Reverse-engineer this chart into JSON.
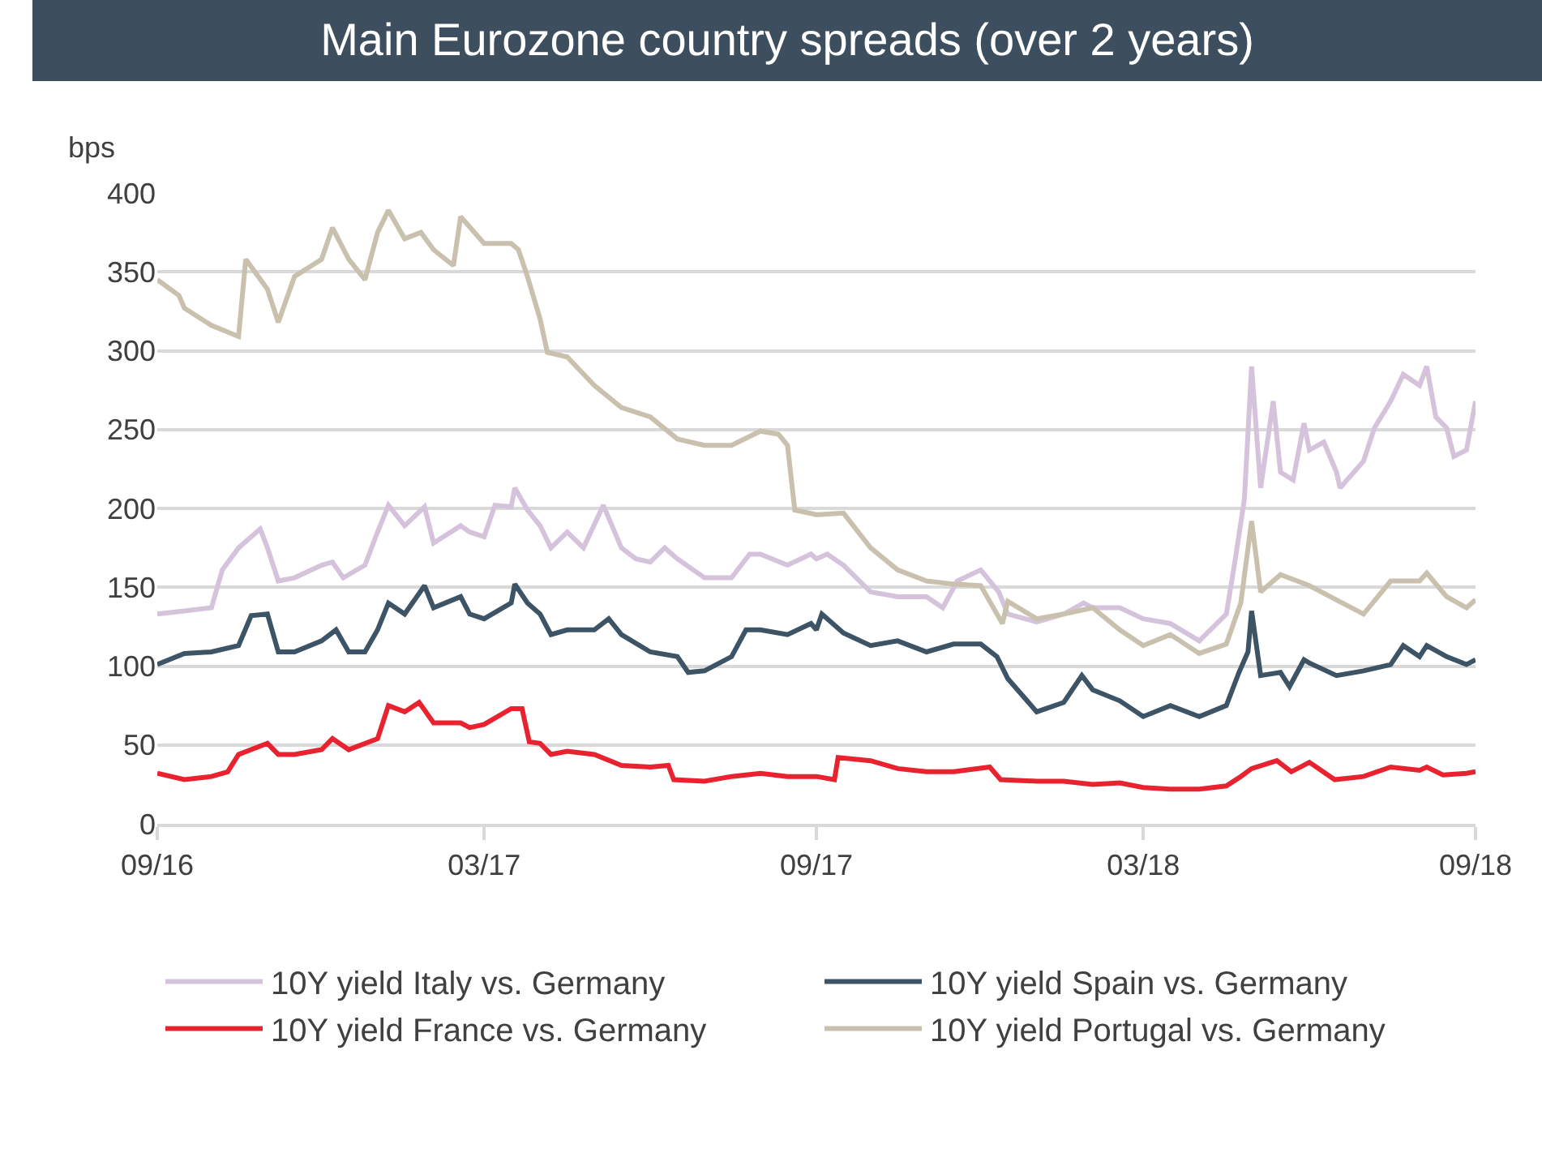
{
  "chart_data": {
    "type": "line",
    "title": "Main Eurozone country spreads (over 2 years)",
    "ylabel": "bps",
    "xlim": [
      "2016-09-01",
      "2018-09-01"
    ],
    "xticks": [
      {
        "value": "2016-09-01",
        "label": "09/16"
      },
      {
        "value": "2017-03-01",
        "label": "03/17"
      },
      {
        "value": "2017-09-01",
        "label": "09/17"
      },
      {
        "value": "2018-03-01",
        "label": "03/18"
      },
      {
        "value": "2018-09-01",
        "label": "09/18"
      }
    ],
    "ylim": [
      0,
      400
    ],
    "yticks": [
      0,
      50,
      100,
      150,
      200,
      250,
      300,
      350,
      400
    ],
    "grid": "y",
    "legend": "bottom",
    "line_style": "solid",
    "marker": "none",
    "series": [
      {
        "name": "10Y yield Italy vs. Germany",
        "color": "#d5c3dc",
        "x": [
          "2016-09-01",
          "2016-09-16",
          "2016-10-01",
          "2016-10-07",
          "2016-10-16",
          "2016-10-28",
          "2016-11-01",
          "2016-11-07",
          "2016-11-16",
          "2016-12-01",
          "2016-12-07",
          "2016-12-13",
          "2016-12-25",
          "2017-01-01",
          "2017-01-07",
          "2017-01-16",
          "2017-01-27",
          "2017-02-01",
          "2017-02-16",
          "2017-02-21",
          "2017-03-01",
          "2017-03-07",
          "2017-03-16",
          "2017-03-18",
          "2017-03-25",
          "2017-04-01",
          "2017-04-07",
          "2017-04-16",
          "2017-04-25",
          "2017-05-06",
          "2017-05-16",
          "2017-05-24",
          "2017-06-01",
          "2017-06-09",
          "2017-06-16",
          "2017-07-01",
          "2017-07-16",
          "2017-07-26",
          "2017-08-01",
          "2017-08-16",
          "2017-08-29",
          "2017-09-01",
          "2017-09-07",
          "2017-09-16",
          "2017-10-01",
          "2017-10-16",
          "2017-11-01",
          "2017-11-10",
          "2017-11-18",
          "2017-12-01",
          "2017-12-11",
          "2017-12-16",
          "2018-01-01",
          "2018-01-16",
          "2018-01-27",
          "2018-02-01",
          "2018-02-16",
          "2018-03-01",
          "2018-03-16",
          "2018-04-01",
          "2018-04-16",
          "2018-04-21",
          "2018-04-26",
          "2018-04-30",
          "2018-05-05",
          "2018-05-12",
          "2018-05-16",
          "2018-05-23",
          "2018-05-29",
          "2018-06-01",
          "2018-06-09",
          "2018-06-16",
          "2018-06-18",
          "2018-07-01",
          "2018-07-07",
          "2018-07-16",
          "2018-07-23",
          "2018-08-01",
          "2018-08-05",
          "2018-08-10",
          "2018-08-16",
          "2018-08-20",
          "2018-08-27",
          "2018-09-01"
        ],
        "values": [
          133,
          135,
          137,
          161,
          175,
          187,
          175,
          154,
          156,
          164,
          166,
          156,
          164,
          185,
          202,
          189,
          201,
          178,
          189,
          185,
          182,
          202,
          201,
          213,
          199,
          189,
          175,
          185,
          175,
          202,
          175,
          168,
          166,
          175,
          168,
          156,
          156,
          171,
          171,
          164,
          171,
          168,
          171,
          164,
          147,
          144,
          144,
          137,
          154,
          161,
          147,
          133,
          128,
          133,
          140,
          137,
          137,
          130,
          127,
          116,
          133,
          168,
          206,
          290,
          213,
          268,
          223,
          218,
          254,
          237,
          242,
          223,
          213,
          230,
          251,
          268,
          285,
          278,
          290,
          258,
          251,
          233,
          237,
          268
        ]
      },
      {
        "name": "10Y yield Spain vs. Germany",
        "color": "#3d5466",
        "x": [
          "2016-09-01",
          "2016-09-16",
          "2016-10-01",
          "2016-10-16",
          "2016-10-23",
          "2016-11-01",
          "2016-11-07",
          "2016-11-16",
          "2016-12-01",
          "2016-12-09",
          "2016-12-16",
          "2016-12-25",
          "2017-01-01",
          "2017-01-07",
          "2017-01-16",
          "2017-01-27",
          "2017-02-01",
          "2017-02-16",
          "2017-02-21",
          "2017-03-01",
          "2017-03-16",
          "2017-03-18",
          "2017-03-25",
          "2017-04-01",
          "2017-04-07",
          "2017-04-16",
          "2017-05-01",
          "2017-05-09",
          "2017-05-16",
          "2017-06-01",
          "2017-06-16",
          "2017-06-22",
          "2017-07-01",
          "2017-07-16",
          "2017-07-24",
          "2017-08-01",
          "2017-08-16",
          "2017-08-29",
          "2017-09-01",
          "2017-09-04",
          "2017-09-16",
          "2017-10-01",
          "2017-10-16",
          "2017-11-01",
          "2017-11-16",
          "2017-12-01",
          "2017-12-10",
          "2017-12-16",
          "2018-01-01",
          "2018-01-16",
          "2018-01-26",
          "2018-02-01",
          "2018-02-16",
          "2018-03-01",
          "2018-03-16",
          "2018-04-01",
          "2018-04-16",
          "2018-04-23",
          "2018-04-28",
          "2018-04-30",
          "2018-05-05",
          "2018-05-16",
          "2018-05-21",
          "2018-05-29",
          "2018-06-01",
          "2018-06-16",
          "2018-07-01",
          "2018-07-16",
          "2018-07-23",
          "2018-08-01",
          "2018-08-05",
          "2018-08-16",
          "2018-08-27",
          "2018-09-01"
        ],
        "values": [
          101,
          108,
          109,
          113,
          132,
          133,
          109,
          109,
          116,
          123,
          109,
          109,
          123,
          140,
          133,
          151,
          137,
          144,
          133,
          130,
          140,
          152,
          140,
          133,
          120,
          123,
          123,
          130,
          120,
          109,
          106,
          96,
          97,
          106,
          123,
          123,
          120,
          127,
          123,
          133,
          121,
          113,
          116,
          109,
          114,
          114,
          106,
          92,
          71,
          77,
          94,
          85,
          78,
          68,
          75,
          68,
          75,
          96,
          109,
          135,
          94,
          96,
          87,
          104,
          102,
          94,
          97,
          101,
          113,
          106,
          113,
          106,
          101,
          104
        ]
      },
      {
        "name": "10Y yield France vs. Germany",
        "color": "#e8232f",
        "x": [
          "2016-09-01",
          "2016-09-16",
          "2016-10-01",
          "2016-10-10",
          "2016-10-16",
          "2016-11-01",
          "2016-11-07",
          "2016-11-16",
          "2016-12-01",
          "2016-12-07",
          "2016-12-16",
          "2017-01-01",
          "2017-01-07",
          "2017-01-16",
          "2017-01-24",
          "2017-02-01",
          "2017-02-16",
          "2017-02-21",
          "2017-03-01",
          "2017-03-16",
          "2017-03-22",
          "2017-03-26",
          "2017-04-01",
          "2017-04-07",
          "2017-04-16",
          "2017-05-01",
          "2017-05-16",
          "2017-06-01",
          "2017-06-11",
          "2017-06-14",
          "2017-07-01",
          "2017-07-16",
          "2017-08-01",
          "2017-08-16",
          "2017-09-01",
          "2017-09-11",
          "2017-09-13",
          "2017-10-01",
          "2017-10-16",
          "2017-11-01",
          "2017-11-16",
          "2017-12-06",
          "2017-12-12",
          "2018-01-01",
          "2018-01-16",
          "2018-02-01",
          "2018-02-16",
          "2018-03-01",
          "2018-03-16",
          "2018-04-01",
          "2018-04-16",
          "2018-04-24",
          "2018-04-30",
          "2018-05-14",
          "2018-05-22",
          "2018-06-01",
          "2018-06-15",
          "2018-07-01",
          "2018-07-16",
          "2018-08-01",
          "2018-08-05",
          "2018-08-14",
          "2018-08-27",
          "2018-09-01"
        ],
        "values": [
          32,
          28,
          30,
          33,
          44,
          51,
          44,
          44,
          47,
          54,
          47,
          54,
          75,
          71,
          77,
          64,
          64,
          61,
          63,
          73,
          73,
          52,
          51,
          44,
          46,
          44,
          37,
          36,
          37,
          28,
          27,
          30,
          32,
          30,
          30,
          28,
          42,
          40,
          35,
          33,
          33,
          36,
          28,
          27,
          27,
          25,
          26,
          23,
          22,
          22,
          24,
          30,
          35,
          40,
          33,
          39,
          28,
          30,
          36,
          34,
          36,
          31,
          32,
          33
        ]
      },
      {
        "name": "10Y yield Portugal vs. Germany",
        "color": "#c9c0ae",
        "x": [
          "2016-09-01",
          "2016-09-13",
          "2016-09-16",
          "2016-10-01",
          "2016-10-16",
          "2016-10-20",
          "2016-11-01",
          "2016-11-07",
          "2016-11-16",
          "2016-12-01",
          "2016-12-07",
          "2016-12-16",
          "2016-12-25",
          "2017-01-01",
          "2017-01-07",
          "2017-01-16",
          "2017-01-25",
          "2017-02-01",
          "2017-02-12",
          "2017-02-16",
          "2017-03-01",
          "2017-03-16",
          "2017-03-20",
          "2017-03-25",
          "2017-04-01",
          "2017-04-05",
          "2017-04-16",
          "2017-05-01",
          "2017-05-16",
          "2017-06-01",
          "2017-06-16",
          "2017-07-01",
          "2017-07-16",
          "2017-08-01",
          "2017-08-11",
          "2017-08-16",
          "2017-08-20",
          "2017-09-01",
          "2017-09-16",
          "2017-10-01",
          "2017-10-16",
          "2017-11-01",
          "2017-11-16",
          "2017-12-01",
          "2017-12-13",
          "2017-12-16",
          "2018-01-01",
          "2018-01-16",
          "2018-02-01",
          "2018-02-16",
          "2018-03-01",
          "2018-03-16",
          "2018-04-01",
          "2018-04-16",
          "2018-04-24",
          "2018-04-30",
          "2018-05-05",
          "2018-05-16",
          "2018-06-01",
          "2018-06-16",
          "2018-07-01",
          "2018-07-16",
          "2018-08-01",
          "2018-08-05",
          "2018-08-16",
          "2018-08-27",
          "2018-09-01"
        ],
        "values": [
          345,
          335,
          327,
          316,
          309,
          358,
          339,
          318,
          347,
          358,
          378,
          358,
          345,
          375,
          389,
          371,
          375,
          364,
          354,
          385,
          368,
          368,
          364,
          347,
          320,
          299,
          296,
          278,
          264,
          258,
          244,
          240,
          240,
          249,
          247,
          240,
          199,
          196,
          197,
          175,
          161,
          154,
          152,
          151,
          127,
          141,
          130,
          133,
          137,
          123,
          113,
          120,
          108,
          114,
          140,
          192,
          147,
          158,
          151,
          142,
          133,
          154,
          154,
          159,
          144,
          137,
          142
        ]
      }
    ]
  }
}
